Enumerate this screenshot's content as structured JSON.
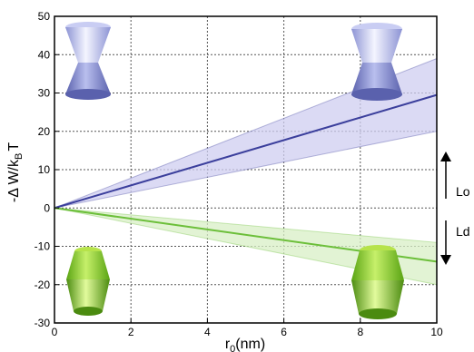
{
  "chart_data": {
    "type": "line",
    "xlabel": "r",
    "xlabel_sub": "0",
    "xlabel_unit": "(nm)",
    "ylabel": "-Δ W/k",
    "ylabel_sub": "B",
    "ylabel_tail": "T",
    "xlim": [
      0,
      10
    ],
    "ylim": [
      -30,
      50
    ],
    "xticks": [
      "0",
      "2",
      "4",
      "6",
      "8",
      "10"
    ],
    "yticks": [
      "-30",
      "-20",
      "-10",
      "0",
      "10",
      "20",
      "30",
      "40",
      "50"
    ],
    "grid": true,
    "series": [
      {
        "color": "#3b3f9c",
        "band_color": "#cfcdf0",
        "x": [
          0,
          10
        ],
        "y": [
          0,
          29.5
        ],
        "band_upper": [
          0,
          39
        ],
        "band_lower": [
          0,
          20
        ]
      },
      {
        "color": "#6cbf3a",
        "band_color": "#d8efc6",
        "x": [
          0,
          10
        ],
        "y": [
          0,
          -14
        ],
        "band_upper": [
          0,
          -9
        ],
        "band_lower": [
          0,
          -20
        ]
      }
    ],
    "annotations": [
      {
        "text": "Lo",
        "arrow": "up"
      },
      {
        "text": "Ld",
        "arrow": "down"
      }
    ]
  },
  "illustrations": {
    "top_icon": "blue-hourglass-cone-icon",
    "bottom_icon": "green-barrel-cylinder-icon",
    "top_colors": {
      "light": "#e8e9fb",
      "mid": "#aab0e8",
      "dark": "#6d74bd"
    },
    "bottom_colors": {
      "light": "#d9f48a",
      "mid": "#8fcf1e",
      "dark": "#4d8f0f"
    }
  }
}
